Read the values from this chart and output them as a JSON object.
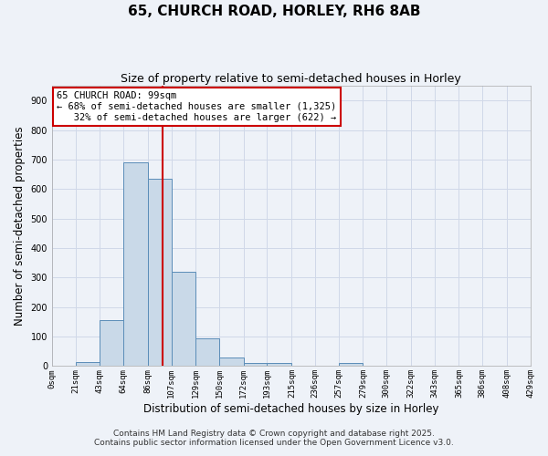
{
  "title": "65, CHURCH ROAD, HORLEY, RH6 8AB",
  "subtitle": "Size of property relative to semi-detached houses in Horley",
  "xlabel": "Distribution of semi-detached houses by size in Horley",
  "ylabel": "Number of semi-detached properties",
  "bin_edges": [
    0,
    21,
    43,
    64,
    86,
    107,
    129,
    150,
    172,
    193,
    215,
    236,
    257,
    279,
    300,
    322,
    343,
    365,
    386,
    408,
    429
  ],
  "bar_heights": [
    0,
    15,
    155,
    690,
    635,
    320,
    95,
    30,
    10,
    10,
    0,
    0,
    10,
    0,
    0,
    0,
    0,
    0,
    0,
    0
  ],
  "bar_color": "#c9d9e8",
  "bar_edgecolor": "#5b8db8",
  "grid_color": "#d0d8e8",
  "background_color": "#eef2f8",
  "vline_x": 99,
  "vline_color": "#cc0000",
  "annotation_line1": "65 CHURCH ROAD: 99sqm",
  "annotation_line2": "← 68% of semi-detached houses are smaller (1,325)",
  "annotation_line3": "   32% of semi-detached houses are larger (622) →",
  "annotation_box_edgecolor": "#cc0000",
  "annotation_box_facecolor": "#ffffff",
  "ylim": [
    0,
    950
  ],
  "yticks": [
    0,
    100,
    200,
    300,
    400,
    500,
    600,
    700,
    800,
    900
  ],
  "footer_line1": "Contains HM Land Registry data © Crown copyright and database right 2025.",
  "footer_line2": "Contains public sector information licensed under the Open Government Licence v3.0.",
  "title_fontsize": 11,
  "subtitle_fontsize": 9,
  "tick_label_fontsize": 6.5,
  "axis_label_fontsize": 8.5,
  "annotation_fontsize": 7.5,
  "footer_fontsize": 6.5
}
